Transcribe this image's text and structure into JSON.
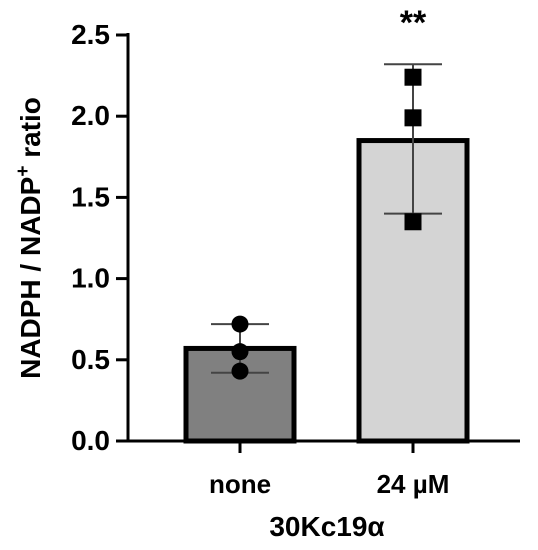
{
  "chart_data": {
    "type": "bar",
    "categories": [
      "none",
      "24 µM"
    ],
    "values": [
      0.57,
      1.85
    ],
    "error_bars": [
      {
        "upper": 0.72,
        "lower": 0.42
      },
      {
        "upper": 2.32,
        "lower": 1.4
      }
    ],
    "points": [
      [
        0.72,
        0.55,
        0.43
      ],
      [
        2.24,
        1.99,
        1.35
      ]
    ],
    "point_markers": [
      "circle",
      "square"
    ],
    "bar_colors": [
      "#808080",
      "#d4d4d4"
    ],
    "significance": [
      "",
      "**"
    ],
    "ylabel_main": "NADPH / NADP",
    "ylabel_sup": "+",
    "ylabel_tail": " ratio",
    "xlabel": "30Kc19α",
    "ylim": [
      0,
      2.5
    ],
    "yticks": [
      "0.0",
      "0.5",
      "1.0",
      "1.5",
      "2.0",
      "2.5"
    ]
  }
}
